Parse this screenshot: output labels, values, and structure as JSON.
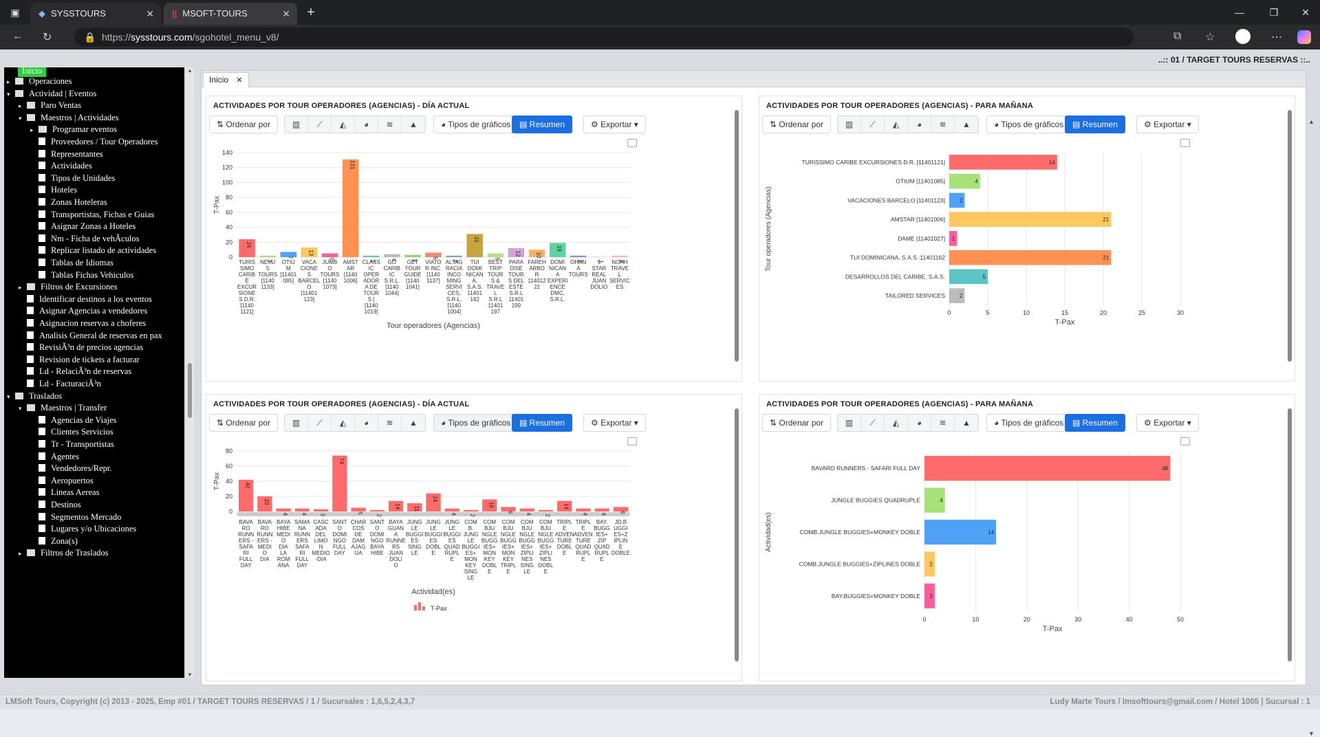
{
  "browser": {
    "tabs": [
      {
        "label": "SYSSTOURS",
        "active": false
      },
      {
        "label": "MSOFT-TOURS",
        "active": true
      }
    ],
    "url_prefix": "https://",
    "url_host": "sysstours.com",
    "url_path": "/sgohotel_menu_v8/"
  },
  "app": {
    "company_banner": "..:: 01 / TARGET TOURS RESERVAS ::..",
    "start_label": "Inicio",
    "workspace_tab": "Inicio",
    "footer_left": "LMSoft Tours, Copyright (c) 2013 - 2025, Emp #01 / TARGET TOURS RESERVAS / 1 / Sucursales : 1,6,5,2,4,3,7",
    "footer_right": "Ludy Marte Tours / lmsofttours@gmail.com / Hotel 1005 | Sucursal : 1"
  },
  "sidebar": {
    "items": [
      {
        "label": "Operaciones",
        "level": 0,
        "type": "folder",
        "arrow": "▸"
      },
      {
        "label": "Actividad | Eventos",
        "level": 0,
        "type": "folder",
        "arrow": "▾"
      },
      {
        "label": "Paro Ventas",
        "level": 1,
        "type": "folder",
        "arrow": "▸"
      },
      {
        "label": "Maestros | Actividades",
        "level": 1,
        "type": "folder",
        "arrow": "▾"
      },
      {
        "label": "Programar eventos",
        "level": 2,
        "type": "folder",
        "arrow": "▸"
      },
      {
        "label": "Proveedores / Tour Operadores",
        "level": 2,
        "type": "doc"
      },
      {
        "label": "Representantes",
        "level": 2,
        "type": "doc"
      },
      {
        "label": "Actividades",
        "level": 2,
        "type": "doc"
      },
      {
        "label": "Tipos de Unidades",
        "level": 2,
        "type": "doc"
      },
      {
        "label": "Hoteles",
        "level": 2,
        "type": "doc"
      },
      {
        "label": "Zonas Hoteleras",
        "level": 2,
        "type": "doc"
      },
      {
        "label": "Transportistas, Fichas e Guias",
        "level": 2,
        "type": "doc"
      },
      {
        "label": "Asignar Zonas a Hoteles",
        "level": 2,
        "type": "doc"
      },
      {
        "label": "Nm - Ficha de vehÃculos",
        "level": 2,
        "type": "doc"
      },
      {
        "label": "Replicar listado de actividades",
        "level": 2,
        "type": "doc"
      },
      {
        "label": "Tablas de Idiomas",
        "level": 2,
        "type": "doc"
      },
      {
        "label": "Tablas Fichas Vehiculos",
        "level": 2,
        "type": "doc"
      },
      {
        "label": "Filtros de Excursiones",
        "level": 1,
        "type": "folder",
        "arrow": "▸"
      },
      {
        "label": "Identificar destinos a los eventos",
        "level": 1,
        "type": "doc"
      },
      {
        "label": "Asignar Agencias a vendedores",
        "level": 1,
        "type": "doc"
      },
      {
        "label": "Asignacion reservas a choferes",
        "level": 1,
        "type": "doc"
      },
      {
        "label": "Analisis General de reservas en pax",
        "level": 1,
        "type": "doc"
      },
      {
        "label": "RevisiÃ³n de precios agencias",
        "level": 1,
        "type": "doc"
      },
      {
        "label": "Revision de tickets a facturar",
        "level": 1,
        "type": "doc"
      },
      {
        "label": "Ld - RelaciÃ³n de reservas",
        "level": 1,
        "type": "doc"
      },
      {
        "label": "Ld - FacturaciÃ³n",
        "level": 1,
        "type": "doc"
      },
      {
        "label": "Traslados",
        "level": 0,
        "type": "folder",
        "arrow": "▾"
      },
      {
        "label": "Maestros | Transfer",
        "level": 1,
        "type": "folder",
        "arrow": "▾"
      },
      {
        "label": "Agencias de Viajes",
        "level": 2,
        "type": "doc"
      },
      {
        "label": "Clientes Servicios",
        "level": 2,
        "type": "doc"
      },
      {
        "label": "Tr - Transportistas",
        "level": 2,
        "type": "doc"
      },
      {
        "label": "Agentes",
        "level": 2,
        "type": "doc"
      },
      {
        "label": "Vendedores/Repr.",
        "level": 2,
        "type": "doc"
      },
      {
        "label": "Aeropuertos",
        "level": 2,
        "type": "doc"
      },
      {
        "label": "Lineas Aereas",
        "level": 2,
        "type": "doc"
      },
      {
        "label": "Destinos",
        "level": 2,
        "type": "doc"
      },
      {
        "label": "Segmentos Mercado",
        "level": 2,
        "type": "doc"
      },
      {
        "label": "Lugares y/o Ubicaciones",
        "level": 2,
        "type": "doc"
      },
      {
        "label": "Zona(s)",
        "level": 2,
        "type": "doc"
      },
      {
        "label": "Filtros de Traslados",
        "level": 1,
        "type": "folder",
        "arrow": "▸"
      }
    ]
  },
  "toolbar": {
    "order_label": "Ordenar por",
    "chart_types_label": "Tipos de gráficos",
    "summary_label": "Resumen",
    "export_label": "Exportar"
  },
  "panels": [
    {
      "title": "ACTIVIDADES POR TOUR OPERADORES (AGENCIAS) - DÍA ACTUAL"
    },
    {
      "title": "ACTIVIDADES POR TOUR OPERADORES (AGENCIAS) - PARA MAÑANA"
    },
    {
      "title": "ACTIVIDADES POR TOUR OPERADORES (AGENCIAS) - DÍA ACTUAL"
    },
    {
      "title": "ACTIVIDADES POR TOUR OPERADORES (AGENCIAS) - PARA MAÑANA"
    }
  ],
  "chart_data": [
    {
      "type": "bar",
      "xlabel": "Tour operadores (Agencias)",
      "ylabel": "T-Pax",
      "ylim": [
        0,
        140
      ],
      "yticks": [
        0,
        20,
        40,
        60,
        80,
        100,
        120,
        140
      ],
      "categories": [
        [
          "TURIS",
          "SIMO",
          "CARIB",
          "E",
          "EXCUR",
          "SIONE",
          "S D.R.",
          "[1140",
          "1121]"
        ],
        [
          "NEXU",
          "S",
          "TOURS",
          "[1140",
          "1133]"
        ],
        [
          "OTIU",
          "M",
          "[11401",
          "085]"
        ],
        [
          "VACA",
          "CIONE",
          "S",
          "BARCEL",
          "O",
          "[11401",
          "123]"
        ],
        [
          "JUMB",
          "O",
          "TOURS",
          "[1140",
          "1073]"
        ],
        [
          "AMST",
          "AR",
          "[1140",
          "1006]"
        ],
        [
          "CLASS",
          "IC",
          "OPER",
          "ADOR",
          "A DE",
          "TOUR",
          "S (",
          "[1140",
          "1019]"
        ],
        [
          "GO",
          "CARIB",
          "IC",
          "S.R.L.",
          "[1140",
          "1044]"
        ],
        [
          "GET",
          "YOUR",
          "GUIDE",
          "[1140",
          "1041]"
        ],
        [
          "VIATO",
          "R INC.",
          "[1140",
          "1137]"
        ],
        [
          "ALTAG",
          "RACIA",
          "INCO",
          "MING",
          "SERVI",
          "CES,",
          "S.R.L.",
          "[1140",
          "1004]"
        ],
        [
          "TUI",
          "DOMI",
          "NICAN",
          "A,",
          "S.A.S.",
          "11401",
          "162"
        ],
        [
          "BEST",
          "TRIP",
          "TOUR",
          "S &",
          "TRAVE",
          "L",
          "S.R.L",
          "11401",
          "197"
        ],
        [
          "PARA",
          "DISE",
          "TOUR",
          "S DEL",
          "ESTE",
          "S.R.L",
          "11401",
          "199"
        ],
        [
          "FAREH",
          "ARBO",
          "R",
          "114012",
          "22"
        ],
        [
          "DOMI",
          "NICAN",
          "A",
          "EXPERI",
          "ENCE",
          "DMC,",
          "S.R.L."
        ],
        [
          "OHAN",
          "A",
          "TOURS"
        ],
        [
          "5",
          "STAR",
          "REAL",
          "JUAN",
          "DOLIO"
        ],
        [
          "NOAH",
          "TRAVE",
          "L",
          "SERVIC",
          "ES"
        ]
      ],
      "values": [
        24,
        2,
        7,
        13,
        5,
        131,
        2,
        4,
        3,
        6,
        2,
        31,
        5,
        12,
        10,
        19,
        2,
        1,
        2
      ],
      "colors": [
        "#ff6b6b",
        "#a8e07a",
        "#4fa3f7",
        "#ffc75f",
        "#f95f9b",
        "#ff9155",
        "#5cc4c4",
        "#bbbbbb",
        "#8ed66a",
        "#ee8a6e",
        "#7aa0c4",
        "#c9a43c",
        "#b3e08a",
        "#d6a2d6",
        "#f0b36a",
        "#5dd39e",
        "#7a94d8",
        "#e8e8e8",
        "#ffb3b3"
      ]
    },
    {
      "type": "bar",
      "orientation": "horizontal",
      "xlabel": "T-Pax",
      "ylabel": "Tour operadores (Agencias)",
      "xlim": [
        0,
        30
      ],
      "xticks": [
        0,
        5,
        10,
        15,
        20,
        25,
        30
      ],
      "categories": [
        "TURISSIMO CARIBE EXCURSIONES D.R. [11401121]",
        "OTIUM [11401085]",
        "VACACIONES BARCELO [11401123]",
        "AMSTAR [11401006]",
        "DAME [11401027]",
        "TUI DOMINICANA, S.A.S. 11401162",
        "DESARROLLOS DEL CARIBE, S.A.S.",
        "TAILORED SERVICES"
      ],
      "values": [
        14,
        4,
        2,
        21,
        1,
        21,
        5,
        2
      ],
      "colors": [
        "#ff6b6b",
        "#a8e07a",
        "#4fa3f7",
        "#ffc75f",
        "#f95f9b",
        "#ff9155",
        "#5cc4c4",
        "#bbbbbb"
      ]
    },
    {
      "type": "bar",
      "xlabel": "Actividad(es)",
      "ylabel": "T-Pax",
      "ylim": [
        0,
        80
      ],
      "yticks": [
        0,
        20,
        40,
        60,
        80
      ],
      "legend": "T-Pax",
      "categories": [
        [
          "BAVA",
          "RO",
          "RUNN",
          "ERS -",
          "SAFA",
          "RI",
          "FULL",
          "DAY"
        ],
        [
          "BAVA",
          "RO",
          "RUNN",
          "ERS -",
          "MEDI",
          "O",
          "DIA"
        ],
        [
          "BAYA",
          "HIBE",
          "MEDI",
          "O",
          "DIA",
          "LA",
          "ROM",
          "ANA"
        ],
        [
          "SAMA",
          "NA",
          "RUNN",
          "ERS",
          "SAFA",
          "RI",
          "FULL",
          "DAY"
        ],
        [
          "CASC",
          "ADA",
          "DEL",
          "LIMO",
          "N",
          "MEDIO",
          "-DIA"
        ],
        [
          "SANT",
          "O",
          "DOMI",
          "NGO",
          "FULL",
          "DAY"
        ],
        [
          "CHAR",
          "COS",
          "DE",
          "DAM",
          "AJAG",
          "UA"
        ],
        [
          "SANT",
          "O",
          "DOMI",
          "NGO",
          "BAYA",
          "HIBE"
        ],
        [
          "BAYA",
          "GUAN",
          "A",
          "RUNNE",
          "RS",
          "JUAN",
          "DOLI",
          "O"
        ],
        [
          "JUNG",
          "LE",
          "BUGGI",
          "ES",
          "SING",
          "LE"
        ],
        [
          "JUNG",
          "LE",
          "BUGGI",
          "ES",
          "DOBL",
          "E"
        ],
        [
          "JUNG",
          "LE",
          "BUGGI",
          "ES",
          "QUAD",
          "RUPL",
          "E"
        ],
        [
          "COM",
          "B.",
          "JUNG",
          "LE",
          "BUGGI",
          "ES+",
          "MON",
          "KEY",
          "SING",
          "LE"
        ],
        [
          "COM",
          "BJU",
          "NGLE",
          "BUGG",
          "IES+",
          "MON",
          "KEY",
          "DOBL",
          "E"
        ],
        [
          "COM",
          "BJU",
          "NGLE",
          "BUGG",
          "IES+",
          "MON",
          "KEY",
          "TRIPL",
          "E"
        ],
        [
          "COM",
          "BJU",
          "NGLE",
          "BUGG",
          "IES+",
          "ZIPLI",
          "NES",
          "SING",
          "LE"
        ],
        [
          "COM",
          "BJU",
          "NGLE",
          "BUGG",
          "IES+",
          "ZIPLI",
          "NES",
          "DOBL",
          "E"
        ],
        [
          "TRIPL",
          "E",
          "ADVEN",
          "TURE",
          "DOBL",
          "E"
        ],
        [
          "TRIPL",
          "E",
          "ADVEN",
          "TURE",
          "QUAD",
          "RUPL",
          "E"
        ],
        [
          "BAY.",
          "BUGG",
          "IES+",
          "ZIP",
          "QUAD",
          "RUPL",
          "E"
        ],
        [
          "JD.B",
          "UGGI",
          "ES+Z",
          "IPLIN",
          "E",
          "DOBLE"
        ]
      ],
      "values": [
        42,
        20,
        4,
        4,
        3,
        74,
        5,
        2,
        14,
        11,
        24,
        4,
        2,
        16,
        6,
        4,
        2,
        14,
        4,
        4,
        6
      ],
      "color": "#ff6b6b"
    },
    {
      "type": "bar",
      "orientation": "horizontal",
      "xlabel": "T-Pax",
      "ylabel": "Actividad(es)",
      "xlim": [
        0,
        50
      ],
      "xticks": [
        0,
        10,
        20,
        30,
        40,
        50
      ],
      "categories": [
        "BAVARO RUNNERS - SAFARI FULL DAY",
        "JUNGLE BUGGIES QUADRUPLE",
        "COMB.JUNGLE BUGGIES+MONKEY DOBLE",
        "COMB.JUNGLE BUGGIES+ZIPLINES DOBLE",
        "BAY.BUGGIES+MONKEY DOBLE"
      ],
      "values": [
        48,
        4,
        14,
        2,
        2
      ],
      "colors": [
        "#ff6b6b",
        "#a8e07a",
        "#4fa3f7",
        "#ffc75f",
        "#f95f9b"
      ]
    }
  ]
}
